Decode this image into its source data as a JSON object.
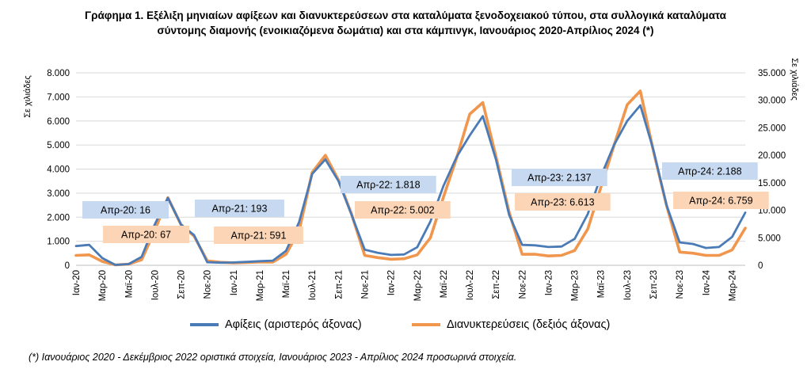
{
  "title": {
    "line1": "Γράφημα 1. Εξέλιξη μηνιαίων αφίξεων και διανυκτερεύσεων στα καταλύματα ξενοδοχειακού τύπου, στα συλλογικά καταλύματα",
    "line2": "σύντομης διαμονής (ενοικιαζόμενα δωμάτια) και στα κάμπινγκ, Ιανουάριος 2020-Απρίλιος 2024 (*)"
  },
  "footnote": "(*) Ιανουάριος 2020 - Δεκέμβριος 2022 οριστικά στοιχεία, Ιανουάριος 2023 - Απρίλιος 2024 προσωρινά στοιχεία.",
  "chart_data": {
    "type": "line",
    "x": [
      "Ιαν-20",
      "Φεβ-20",
      "Μαρ-20",
      "Απρ-20",
      "Μαϊ-20",
      "Ιουν-20",
      "Ιουλ-20",
      "Αυγ-20",
      "Σεπ-20",
      "Οκτ-20",
      "Νοε-20",
      "Δεκ-20",
      "Ιαν-21",
      "Φεβ-21",
      "Μαρ-21",
      "Απρ-21",
      "Μαϊ-21",
      "Ιουν-21",
      "Ιουλ-21",
      "Αυγ-21",
      "Σεπ-21",
      "Οκτ-21",
      "Νοε-21",
      "Δεκ-21",
      "Ιαν-22",
      "Φεβ-22",
      "Μαρ-22",
      "Απρ-22",
      "Μαϊ-22",
      "Ιουν-22",
      "Ιουλ-22",
      "Αυγ-22",
      "Σεπ-22",
      "Οκτ-22",
      "Νοε-22",
      "Δεκ-22",
      "Ιαν-23",
      "Φεβ-23",
      "Μαρ-23",
      "Απρ-23",
      "Μαϊ-23",
      "Ιουν-23",
      "Ιουλ-23",
      "Αυγ-23",
      "Σεπ-23",
      "Οκτ-23",
      "Νοε-23",
      "Δεκ-23",
      "Ιαν-24",
      "Φεβ-24",
      "Μαρ-24",
      "Απρ-24"
    ],
    "x_tick_labels": [
      "Ιαν-20",
      "Μαρ-20",
      "Μαϊ-20",
      "Ιουλ-20",
      "Σεπ-20",
      "Νοε-20",
      "Ιαν-21",
      "Μαρ-21",
      "Μαϊ-21",
      "Ιουλ-21",
      "Σεπ-21",
      "Νοε-21",
      "Ιαν-22",
      "Μαρ-22",
      "Μαϊ-22",
      "Ιουλ-22",
      "Σεπ-22",
      "Νοε-22",
      "Ιαν-23",
      "Μαρ-23",
      "Μαϊ-23",
      "Ιουλ-23",
      "Σεπ-23",
      "Νοε-23",
      "Ιαν-24",
      "Μαρ-24"
    ],
    "y_left": {
      "label": "Σε χιλιάδες",
      "lim": [
        0,
        8000
      ],
      "ticks": [
        "0",
        "1.000",
        "2.000",
        "3.000",
        "4.000",
        "5.000",
        "6.000",
        "7.000",
        "8.000"
      ]
    },
    "y_right": {
      "label": "Σε χιλιάδες",
      "lim": [
        0,
        35000
      ],
      "ticks": [
        "0",
        "5.000",
        "10.000",
        "15.000",
        "20.000",
        "25.000",
        "30.000",
        "35.000"
      ]
    },
    "grid": "horizontal",
    "legend_position": "bottom",
    "series": [
      {
        "name": "Αφίξεις (αριστερός άξονας)",
        "axis": "left",
        "color": "#4a7bb7",
        "values": [
          800,
          850,
          300,
          16,
          50,
          350,
          1700,
          2800,
          1700,
          1250,
          130,
          110,
          120,
          140,
          170,
          193,
          600,
          1800,
          3800,
          4400,
          3500,
          2100,
          650,
          520,
          430,
          450,
          750,
          1818,
          3300,
          4500,
          5400,
          6200,
          4400,
          2100,
          850,
          830,
          760,
          780,
          1100,
          2137,
          3700,
          5000,
          6000,
          6650,
          4800,
          2500,
          950,
          890,
          720,
          760,
          1180,
          2188
        ]
      },
      {
        "name": "Διανυκτερεύσεις (δεξιός άξονας)",
        "axis": "right",
        "color": "#f0964d",
        "values": [
          1800,
          1900,
          700,
          67,
          200,
          1000,
          6300,
          12300,
          7400,
          5300,
          800,
          550,
          450,
          500,
          600,
          591,
          2000,
          6300,
          16900,
          20000,
          15500,
          9300,
          1800,
          1400,
          1100,
          1200,
          1900,
          5002,
          12400,
          19500,
          27500,
          29600,
          19800,
          9700,
          2000,
          2000,
          1700,
          1800,
          2700,
          6613,
          14200,
          21800,
          29200,
          31700,
          20800,
          10900,
          2400,
          2200,
          1800,
          1800,
          2800,
          6759
        ]
      }
    ],
    "annotations": [
      {
        "index": 3,
        "series": 0,
        "text": "Απρ-20: 16"
      },
      {
        "index": 3,
        "series": 1,
        "text": "Απρ-20: 67"
      },
      {
        "index": 15,
        "series": 0,
        "text": "Απρ-21: 193"
      },
      {
        "index": 15,
        "series": 1,
        "text": "Απρ-21: 591"
      },
      {
        "index": 27,
        "series": 0,
        "text": "Απρ-22: 1.818"
      },
      {
        "index": 27,
        "series": 1,
        "text": "Απρ-22: 5.002"
      },
      {
        "index": 39,
        "series": 0,
        "text": "Απρ-23: 2.137"
      },
      {
        "index": 39,
        "series": 1,
        "text": "Απρ-23: 6.613"
      },
      {
        "index": 51,
        "series": 0,
        "text": "Απρ-24: 2.188"
      },
      {
        "index": 51,
        "series": 1,
        "text": "Απρ-24: 6.759"
      }
    ],
    "annotation_colors": {
      "blue_box": "#c6d9f1",
      "orange_box": "#fbd5b5"
    }
  }
}
